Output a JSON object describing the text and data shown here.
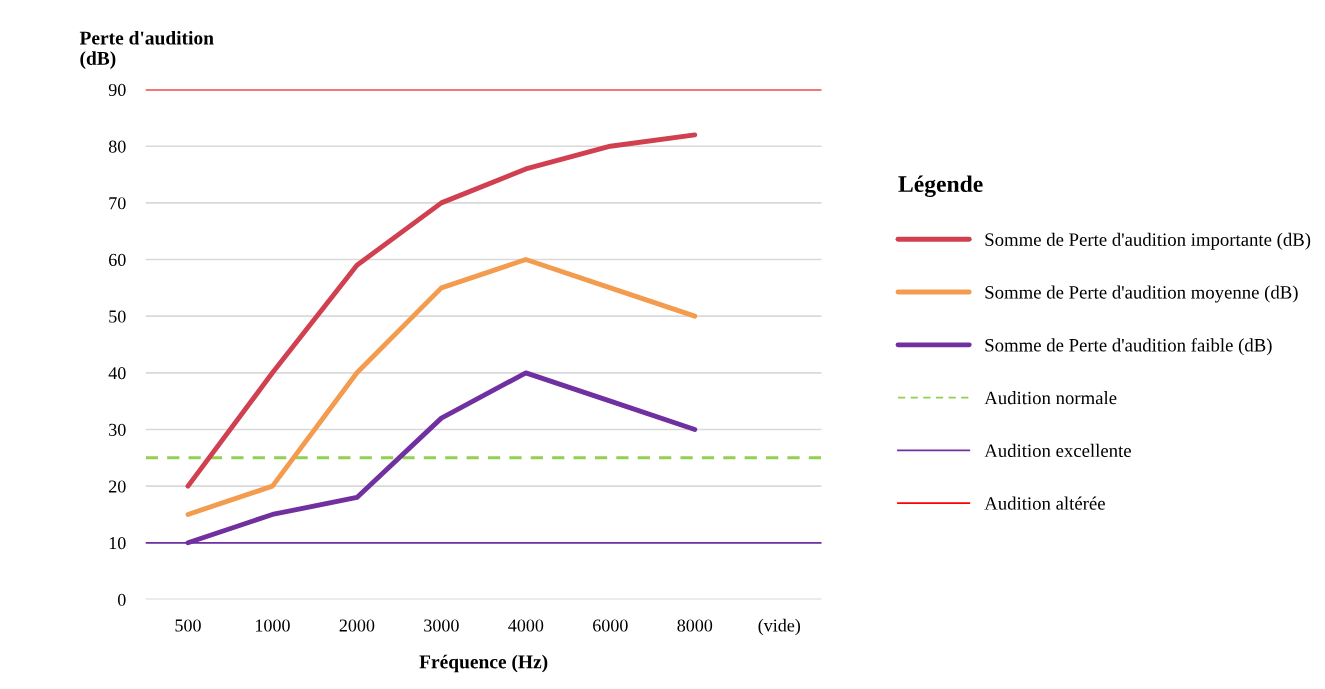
{
  "chart_data": {
    "type": "line",
    "xlabel": "Fréquence (Hz)",
    "ylabel": "Perte d'audition\n(dB)",
    "legend_title": "Légende",
    "categories": [
      "500",
      "1000",
      "2000",
      "3000",
      "4000",
      "6000",
      "8000",
      "(vide)"
    ],
    "series": [
      {
        "name": "Somme de Perte d'audition importante (dB)",
        "color": "#d04050",
        "values": [
          20,
          40,
          59,
          70,
          76,
          80,
          82,
          null
        ]
      },
      {
        "name": "Somme de Perte d'audition moyenne (dB)",
        "color": "#f39c50",
        "values": [
          15,
          20,
          40,
          55,
          60,
          55,
          50,
          null
        ]
      },
      {
        "name": "Somme de Perte d'audition faible (dB)",
        "color": "#7030a0",
        "values": [
          10,
          15,
          18,
          32,
          40,
          35,
          30,
          null
        ]
      }
    ],
    "ref_lines": [
      {
        "axis": "y",
        "value": 25,
        "label": "Audition normale",
        "color": "#92d050",
        "line_style": "dashed"
      },
      {
        "axis": "y",
        "value": 10,
        "label": "Audition excellente",
        "color": "#7030a0",
        "line_style": "solid"
      },
      {
        "axis": "y",
        "value": 90,
        "label": "Audition altérée",
        "color": "#ff0000",
        "line_style": "solid"
      }
    ],
    "ylim": [
      0,
      90
    ],
    "yticks": [
      0,
      10,
      20,
      30,
      40,
      50,
      60,
      70,
      80,
      90
    ],
    "grid": "y",
    "legend": "right",
    "marker": "none",
    "line_style": "solid"
  }
}
